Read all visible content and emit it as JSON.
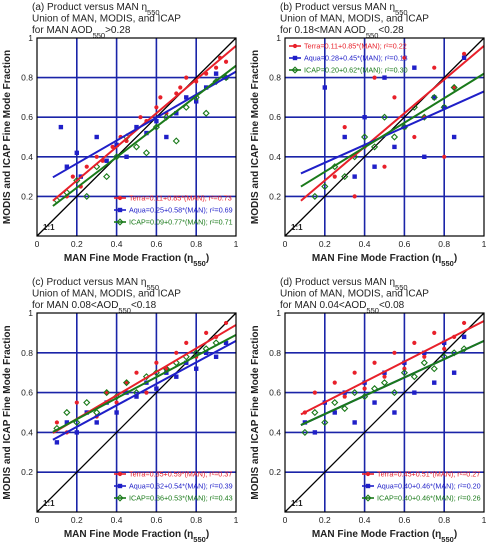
{
  "chart_data": [
    {
      "type": "scatter",
      "title_lines": [
        "(a) Product versus MAN η550",
        "Union of MAN, MODIS, and ICAP",
        "for MAN AOD550>0.28"
      ],
      "xlabel": "MAN Fine Mode Fraction (η550)",
      "ylabel": "MODIS and ICAP Fine Mode Fraction",
      "one_to_one_label": "1:1",
      "xlim": [
        0,
        1
      ],
      "ylim": [
        0,
        1
      ],
      "xticks": [
        "0",
        "0.2",
        "0.4",
        "0.6",
        "0.8",
        "1"
      ],
      "yticks": [
        "0",
        "0.2",
        "0.4",
        "0.6",
        "0.8",
        "1"
      ],
      "grid": true,
      "legend_position": "bottom-right",
      "series": [
        {
          "name": "Terra",
          "label": "Terra=0.11+0.85*(MAN); r²=0.73",
          "color": "#e8202a",
          "marker": "circle",
          "intercept": 0.11,
          "slope": 0.85,
          "x": [
            0.15,
            0.18,
            0.22,
            0.25,
            0.3,
            0.33,
            0.38,
            0.42,
            0.45,
            0.5,
            0.52,
            0.55,
            0.6,
            0.62,
            0.65,
            0.7,
            0.72,
            0.75,
            0.8,
            0.85,
            0.9,
            0.92,
            0.95
          ],
          "y": [
            0.2,
            0.3,
            0.25,
            0.35,
            0.4,
            0.38,
            0.45,
            0.5,
            0.48,
            0.55,
            0.6,
            0.58,
            0.65,
            0.7,
            0.62,
            0.72,
            0.75,
            0.8,
            0.78,
            0.82,
            0.85,
            0.9,
            0.88
          ]
        },
        {
          "name": "Aqua",
          "label": "Aqua=0.25+0.58*(MAN); r²=0.69",
          "color": "#1f1fc8",
          "marker": "square",
          "intercept": 0.25,
          "slope": 0.58,
          "x": [
            0.12,
            0.15,
            0.2,
            0.22,
            0.3,
            0.35,
            0.4,
            0.45,
            0.5,
            0.55,
            0.6,
            0.65,
            0.7,
            0.75,
            0.8,
            0.85,
            0.9,
            0.95
          ],
          "y": [
            0.55,
            0.35,
            0.42,
            0.3,
            0.5,
            0.38,
            0.46,
            0.4,
            0.55,
            0.52,
            0.58,
            0.5,
            0.62,
            0.7,
            0.68,
            0.75,
            0.82,
            0.8
          ]
        },
        {
          "name": "ICAP",
          "label": "ICAP=0.09+0.77*(MAN); r²=0.71",
          "color": "#1a7a1a",
          "marker": "diamond",
          "intercept": 0.09,
          "slope": 0.77,
          "x": [
            0.1,
            0.15,
            0.2,
            0.25,
            0.3,
            0.35,
            0.4,
            0.45,
            0.5,
            0.55,
            0.6,
            0.65,
            0.7,
            0.75,
            0.8,
            0.85,
            0.9,
            0.95
          ],
          "y": [
            0.18,
            0.22,
            0.28,
            0.2,
            0.35,
            0.3,
            0.4,
            0.5,
            0.45,
            0.42,
            0.55,
            0.6,
            0.48,
            0.65,
            0.7,
            0.62,
            0.78,
            0.8
          ]
        }
      ]
    },
    {
      "type": "scatter",
      "title_lines": [
        "(b) Product versus MAN η550",
        "Union of MAN, MODIS, and ICAP",
        "for 0.18<MAN AOD550<0.28"
      ],
      "xlabel": "MAN Fine Mode Fraction (η550)",
      "ylabel": "MODIS and ICAP Fine Mode Fraction",
      "one_to_one_label": "1:1",
      "xlim": [
        0,
        1
      ],
      "ylim": [
        0,
        1
      ],
      "xticks": [
        "0",
        "0.2",
        "0.4",
        "0.6",
        "0.8",
        "1"
      ],
      "yticks": [
        "0",
        "0.2",
        "0.4",
        "0.6",
        "0.8",
        "1"
      ],
      "grid": true,
      "legend_position": "top-left",
      "series": [
        {
          "name": "Terra",
          "label": "Terra=0.11+0.85*(MAN); r²=0.22",
          "color": "#e8202a",
          "marker": "circle",
          "intercept": 0.11,
          "slope": 0.85,
          "x": [
            0.25,
            0.3,
            0.35,
            0.4,
            0.45,
            0.5,
            0.55,
            0.6,
            0.65,
            0.7,
            0.75,
            0.8,
            0.85,
            0.9
          ],
          "y": [
            0.3,
            0.55,
            0.2,
            0.45,
            0.8,
            0.35,
            0.7,
            0.9,
            0.5,
            0.6,
            0.85,
            0.4,
            0.75,
            0.92
          ]
        },
        {
          "name": "Aqua",
          "label": "Aqua=0.28+0.45*(MAN); r²=0.13",
          "color": "#1f1fc8",
          "marker": "square",
          "intercept": 0.28,
          "slope": 0.45,
          "x": [
            0.2,
            0.3,
            0.35,
            0.4,
            0.45,
            0.5,
            0.55,
            0.6,
            0.65,
            0.7,
            0.75,
            0.8,
            0.85,
            0.9
          ],
          "y": [
            0.75,
            0.5,
            0.3,
            0.6,
            0.35,
            0.8,
            0.45,
            0.55,
            0.85,
            0.4,
            0.7,
            0.65,
            0.5,
            0.9
          ]
        },
        {
          "name": "ICAP",
          "label": "ICAP=0.20+0.62*(MAN); r²=0.30",
          "color": "#1a7a1a",
          "marker": "diamond",
          "intercept": 0.2,
          "slope": 0.62,
          "x": [
            0.15,
            0.2,
            0.25,
            0.3,
            0.35,
            0.4,
            0.45,
            0.5,
            0.55,
            0.6,
            0.65,
            0.7,
            0.75,
            0.8,
            0.85
          ],
          "y": [
            0.2,
            0.25,
            0.35,
            0.3,
            0.4,
            0.5,
            0.45,
            0.6,
            0.5,
            0.55,
            0.65,
            0.6,
            0.7,
            0.65,
            0.75
          ]
        }
      ]
    },
    {
      "type": "scatter",
      "title_lines": [
        "(c) Product versus MAN η550",
        "Union of MAN, MODIS, and ICAP",
        "for MAN 0.08<AOD550<0.18"
      ],
      "xlabel": "MAN Fine Mode Fraction (η550)",
      "ylabel": "MODIS and ICAP Fine Mode Fraction",
      "one_to_one_label": "1:1",
      "xlim": [
        0,
        1
      ],
      "ylim": [
        0,
        1
      ],
      "xticks": [
        "0",
        "0.2",
        "0.4",
        "0.6",
        "0.8",
        "1"
      ],
      "yticks": [
        "0",
        "0.2",
        "0.4",
        "0.6",
        "0.8",
        "1"
      ],
      "grid": true,
      "legend_position": "bottom-right",
      "series": [
        {
          "name": "Terra",
          "label": "Terra=0.35+0.59*(MAN); r²=0.37",
          "color": "#e8202a",
          "marker": "circle",
          "intercept": 0.35,
          "slope": 0.59,
          "x": [
            0.1,
            0.15,
            0.2,
            0.25,
            0.3,
            0.35,
            0.4,
            0.45,
            0.5,
            0.55,
            0.6,
            0.65,
            0.7,
            0.75,
            0.8,
            0.85,
            0.9,
            0.95
          ],
          "y": [
            0.45,
            0.4,
            0.55,
            0.5,
            0.48,
            0.6,
            0.55,
            0.65,
            0.7,
            0.6,
            0.75,
            0.72,
            0.8,
            0.85,
            0.78,
            0.9,
            0.88,
            0.95
          ]
        },
        {
          "name": "Aqua",
          "label": "Aqua=0.32+0.54*(MAN); r²=0.39",
          "color": "#1f1fc8",
          "marker": "square",
          "intercept": 0.32,
          "slope": 0.54,
          "x": [
            0.1,
            0.15,
            0.2,
            0.25,
            0.3,
            0.35,
            0.4,
            0.45,
            0.5,
            0.55,
            0.6,
            0.65,
            0.7,
            0.75,
            0.8,
            0.85,
            0.9,
            0.95
          ],
          "y": [
            0.35,
            0.45,
            0.4,
            0.5,
            0.45,
            0.55,
            0.5,
            0.6,
            0.58,
            0.65,
            0.62,
            0.7,
            0.68,
            0.75,
            0.72,
            0.8,
            0.78,
            0.85
          ]
        },
        {
          "name": "ICAP",
          "label": "ICAP=0.36+0.53*(MAN); r²=0.43",
          "color": "#1a7a1a",
          "marker": "diamond",
          "intercept": 0.36,
          "slope": 0.53,
          "x": [
            0.1,
            0.15,
            0.2,
            0.25,
            0.3,
            0.35,
            0.4,
            0.45,
            0.5,
            0.55,
            0.6,
            0.65,
            0.7,
            0.75,
            0.8,
            0.85,
            0.9
          ],
          "y": [
            0.42,
            0.5,
            0.45,
            0.55,
            0.5,
            0.6,
            0.58,
            0.65,
            0.6,
            0.68,
            0.7,
            0.72,
            0.75,
            0.78,
            0.8,
            0.82,
            0.85
          ]
        }
      ]
    },
    {
      "type": "scatter",
      "title_lines": [
        "(d) Product versus MAN η550",
        "Union of MAN, MODIS, and ICAP",
        "for MAN 0.04<AOD550<0.08"
      ],
      "xlabel": "MAN Fine Mode Fraction (η550)",
      "ylabel": "MODIS and ICAP Fine Mode Fraction",
      "one_to_one_label": "1:1",
      "xlim": [
        0,
        1
      ],
      "ylim": [
        0,
        1
      ],
      "xticks": [
        "0",
        "0.2",
        "0.4",
        "0.6",
        "0.8",
        "1"
      ],
      "yticks": [
        "0",
        "0.2",
        "0.4",
        "0.6",
        "0.8",
        "1"
      ],
      "grid": true,
      "legend_position": "bottom-right",
      "series": [
        {
          "name": "Terra",
          "label": "Terra=0.45+0.51*(MAN); r²=0.27",
          "color": "#e8202a",
          "marker": "circle",
          "intercept": 0.45,
          "slope": 0.51,
          "x": [
            0.1,
            0.15,
            0.2,
            0.25,
            0.3,
            0.35,
            0.4,
            0.45,
            0.5,
            0.55,
            0.6,
            0.65,
            0.7,
            0.75,
            0.8,
            0.85,
            0.9
          ],
          "y": [
            0.5,
            0.6,
            0.55,
            0.65,
            0.58,
            0.7,
            0.62,
            0.75,
            0.68,
            0.8,
            0.72,
            0.85,
            0.78,
            0.9,
            0.82,
            0.88,
            0.95
          ]
        },
        {
          "name": "Aqua",
          "label": "Aqua=0.40+0.46*(MAN); r²=0.20",
          "color": "#1f1fc8",
          "marker": "square",
          "intercept": 0.4,
          "slope": 0.46,
          "x": [
            0.1,
            0.15,
            0.2,
            0.25,
            0.3,
            0.35,
            0.4,
            0.45,
            0.5,
            0.55,
            0.6,
            0.65,
            0.7,
            0.75,
            0.8,
            0.85,
            0.9
          ],
          "y": [
            0.45,
            0.4,
            0.55,
            0.5,
            0.6,
            0.45,
            0.65,
            0.55,
            0.7,
            0.5,
            0.75,
            0.6,
            0.8,
            0.65,
            0.85,
            0.7,
            0.88
          ]
        },
        {
          "name": "ICAP",
          "label": "ICAP=0.40+0.46*(MAN); r²=0.26",
          "color": "#1a7a1a",
          "marker": "diamond",
          "intercept": 0.4,
          "slope": 0.46,
          "x": [
            0.1,
            0.15,
            0.2,
            0.25,
            0.3,
            0.35,
            0.4,
            0.45,
            0.5,
            0.55,
            0.6,
            0.65,
            0.7,
            0.75,
            0.8,
            0.85,
            0.9
          ],
          "y": [
            0.4,
            0.5,
            0.45,
            0.55,
            0.52,
            0.6,
            0.58,
            0.62,
            0.65,
            0.6,
            0.7,
            0.68,
            0.75,
            0.72,
            0.78,
            0.8,
            0.82
          ]
        }
      ]
    }
  ]
}
